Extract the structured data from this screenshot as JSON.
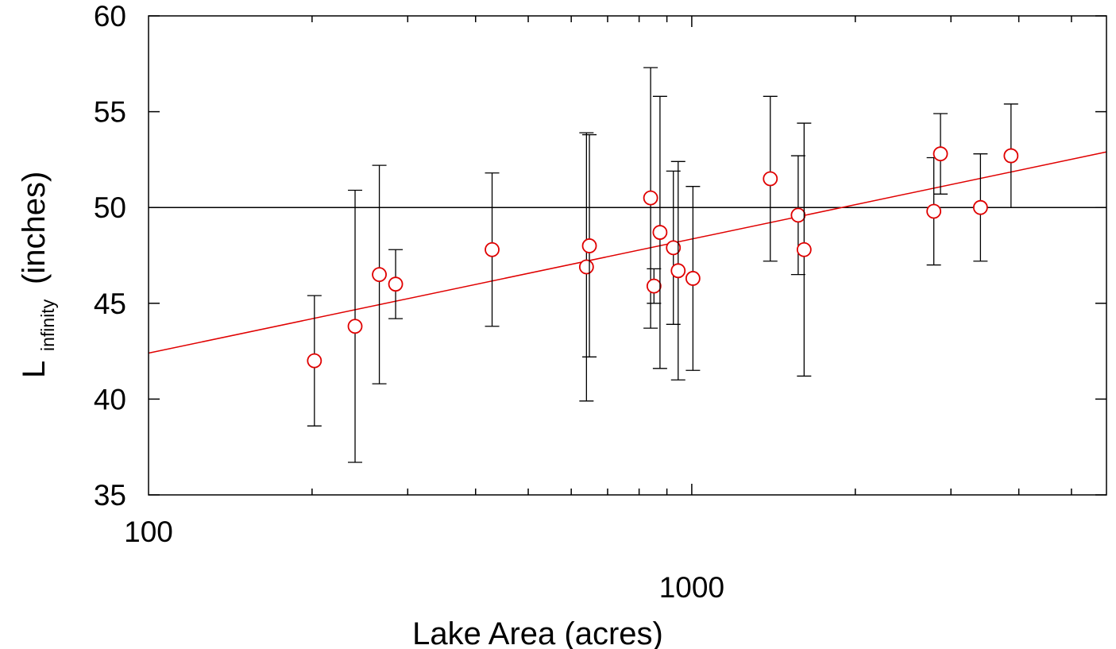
{
  "chart_data": {
    "type": "scatter",
    "xlabel": "Lake Area (acres)",
    "ylabel_main": "L",
    "ylabel_sub": "infinity",
    "ylabel_tail": "(inches)",
    "x_scale": "log",
    "xlim": [
      100,
      5800
    ],
    "ylim": [
      35,
      60
    ],
    "x_ticks": [
      100,
      1000
    ],
    "x_tick_labels": [
      "100",
      "1000"
    ],
    "y_ticks": [
      35,
      40,
      45,
      50,
      55,
      60
    ],
    "y_tick_labels": [
      "35",
      "40",
      "45",
      "50",
      "55",
      "60"
    ],
    "grid": false,
    "reference_line": {
      "y": 50,
      "color": "#000000"
    },
    "fit_line": {
      "color": "#e00000",
      "x": [
        100,
        5800
      ],
      "y": [
        42.4,
        52.9
      ]
    },
    "marker_color": "#e00000",
    "errorbar_color": "#000000",
    "points": [
      {
        "x": 202,
        "y": 42.0,
        "ylow": 38.6,
        "yhigh": 45.4
      },
      {
        "x": 240,
        "y": 43.8,
        "ylow": 36.7,
        "yhigh": 50.9
      },
      {
        "x": 266,
        "y": 46.5,
        "ylow": 40.8,
        "yhigh": 52.2
      },
      {
        "x": 285,
        "y": 46.0,
        "ylow": 44.2,
        "yhigh": 47.8
      },
      {
        "x": 429,
        "y": 47.8,
        "ylow": 43.8,
        "yhigh": 51.8
      },
      {
        "x": 640,
        "y": 46.9,
        "ylow": 39.9,
        "yhigh": 53.9
      },
      {
        "x": 648,
        "y": 48.0,
        "ylow": 42.2,
        "yhigh": 53.8
      },
      {
        "x": 840,
        "y": 50.5,
        "ylow": 43.7,
        "yhigh": 57.3
      },
      {
        "x": 852,
        "y": 45.9,
        "ylow": 45.0,
        "yhigh": 46.8
      },
      {
        "x": 874,
        "y": 48.7,
        "ylow": 41.6,
        "yhigh": 55.8
      },
      {
        "x": 925,
        "y": 47.9,
        "ylow": 43.9,
        "yhigh": 51.9
      },
      {
        "x": 944,
        "y": 46.7,
        "ylow": 41.0,
        "yhigh": 52.4
      },
      {
        "x": 1005,
        "y": 46.3,
        "ylow": 41.5,
        "yhigh": 51.1
      },
      {
        "x": 1395,
        "y": 51.5,
        "ylow": 47.2,
        "yhigh": 55.8
      },
      {
        "x": 1570,
        "y": 49.6,
        "ylow": 46.5,
        "yhigh": 52.7
      },
      {
        "x": 1610,
        "y": 47.8,
        "ylow": 41.2,
        "yhigh": 54.4
      },
      {
        "x": 2790,
        "y": 49.8,
        "ylow": 47.0,
        "yhigh": 52.6
      },
      {
        "x": 2870,
        "y": 52.8,
        "ylow": 50.7,
        "yhigh": 54.9
      },
      {
        "x": 3400,
        "y": 50.0,
        "ylow": 47.2,
        "yhigh": 52.8
      },
      {
        "x": 3870,
        "y": 52.7,
        "ylow": 50.0,
        "yhigh": 55.4
      }
    ]
  }
}
